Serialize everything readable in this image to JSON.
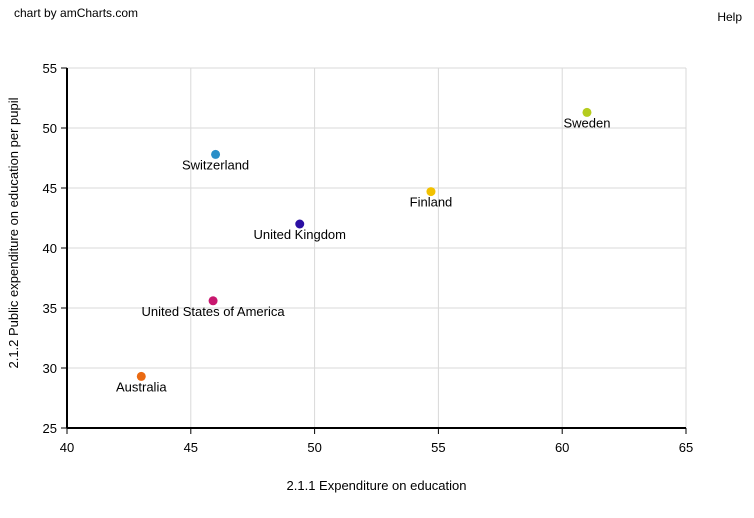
{
  "credit": "chart by amCharts.com",
  "help_label": "Help",
  "chart_data": {
    "type": "scatter",
    "xlabel": "2.1.1 Expenditure on education",
    "ylabel": "2.1.2 Public expenditure on education per pupil",
    "xlim": [
      40,
      65
    ],
    "ylim": [
      25,
      55
    ],
    "xticks": [
      40,
      45,
      50,
      55,
      60,
      65
    ],
    "yticks": [
      25,
      30,
      35,
      40,
      45,
      50,
      55
    ],
    "grid": true,
    "points": [
      {
        "label": "Sweden",
        "x": 61.0,
        "y": 51.3,
        "color": "#b5cc1e"
      },
      {
        "label": "Switzerland",
        "x": 46.0,
        "y": 47.8,
        "color": "#2a8fc8"
      },
      {
        "label": "Finland",
        "x": 54.7,
        "y": 44.7,
        "color": "#f2c100"
      },
      {
        "label": "United Kingdom",
        "x": 49.4,
        "y": 42.0,
        "color": "#2b0fa3"
      },
      {
        "label": "United States of America",
        "x": 45.9,
        "y": 35.6,
        "color": "#c8176e"
      },
      {
        "label": "Australia",
        "x": 43.0,
        "y": 29.3,
        "color": "#ea6a12"
      }
    ]
  }
}
